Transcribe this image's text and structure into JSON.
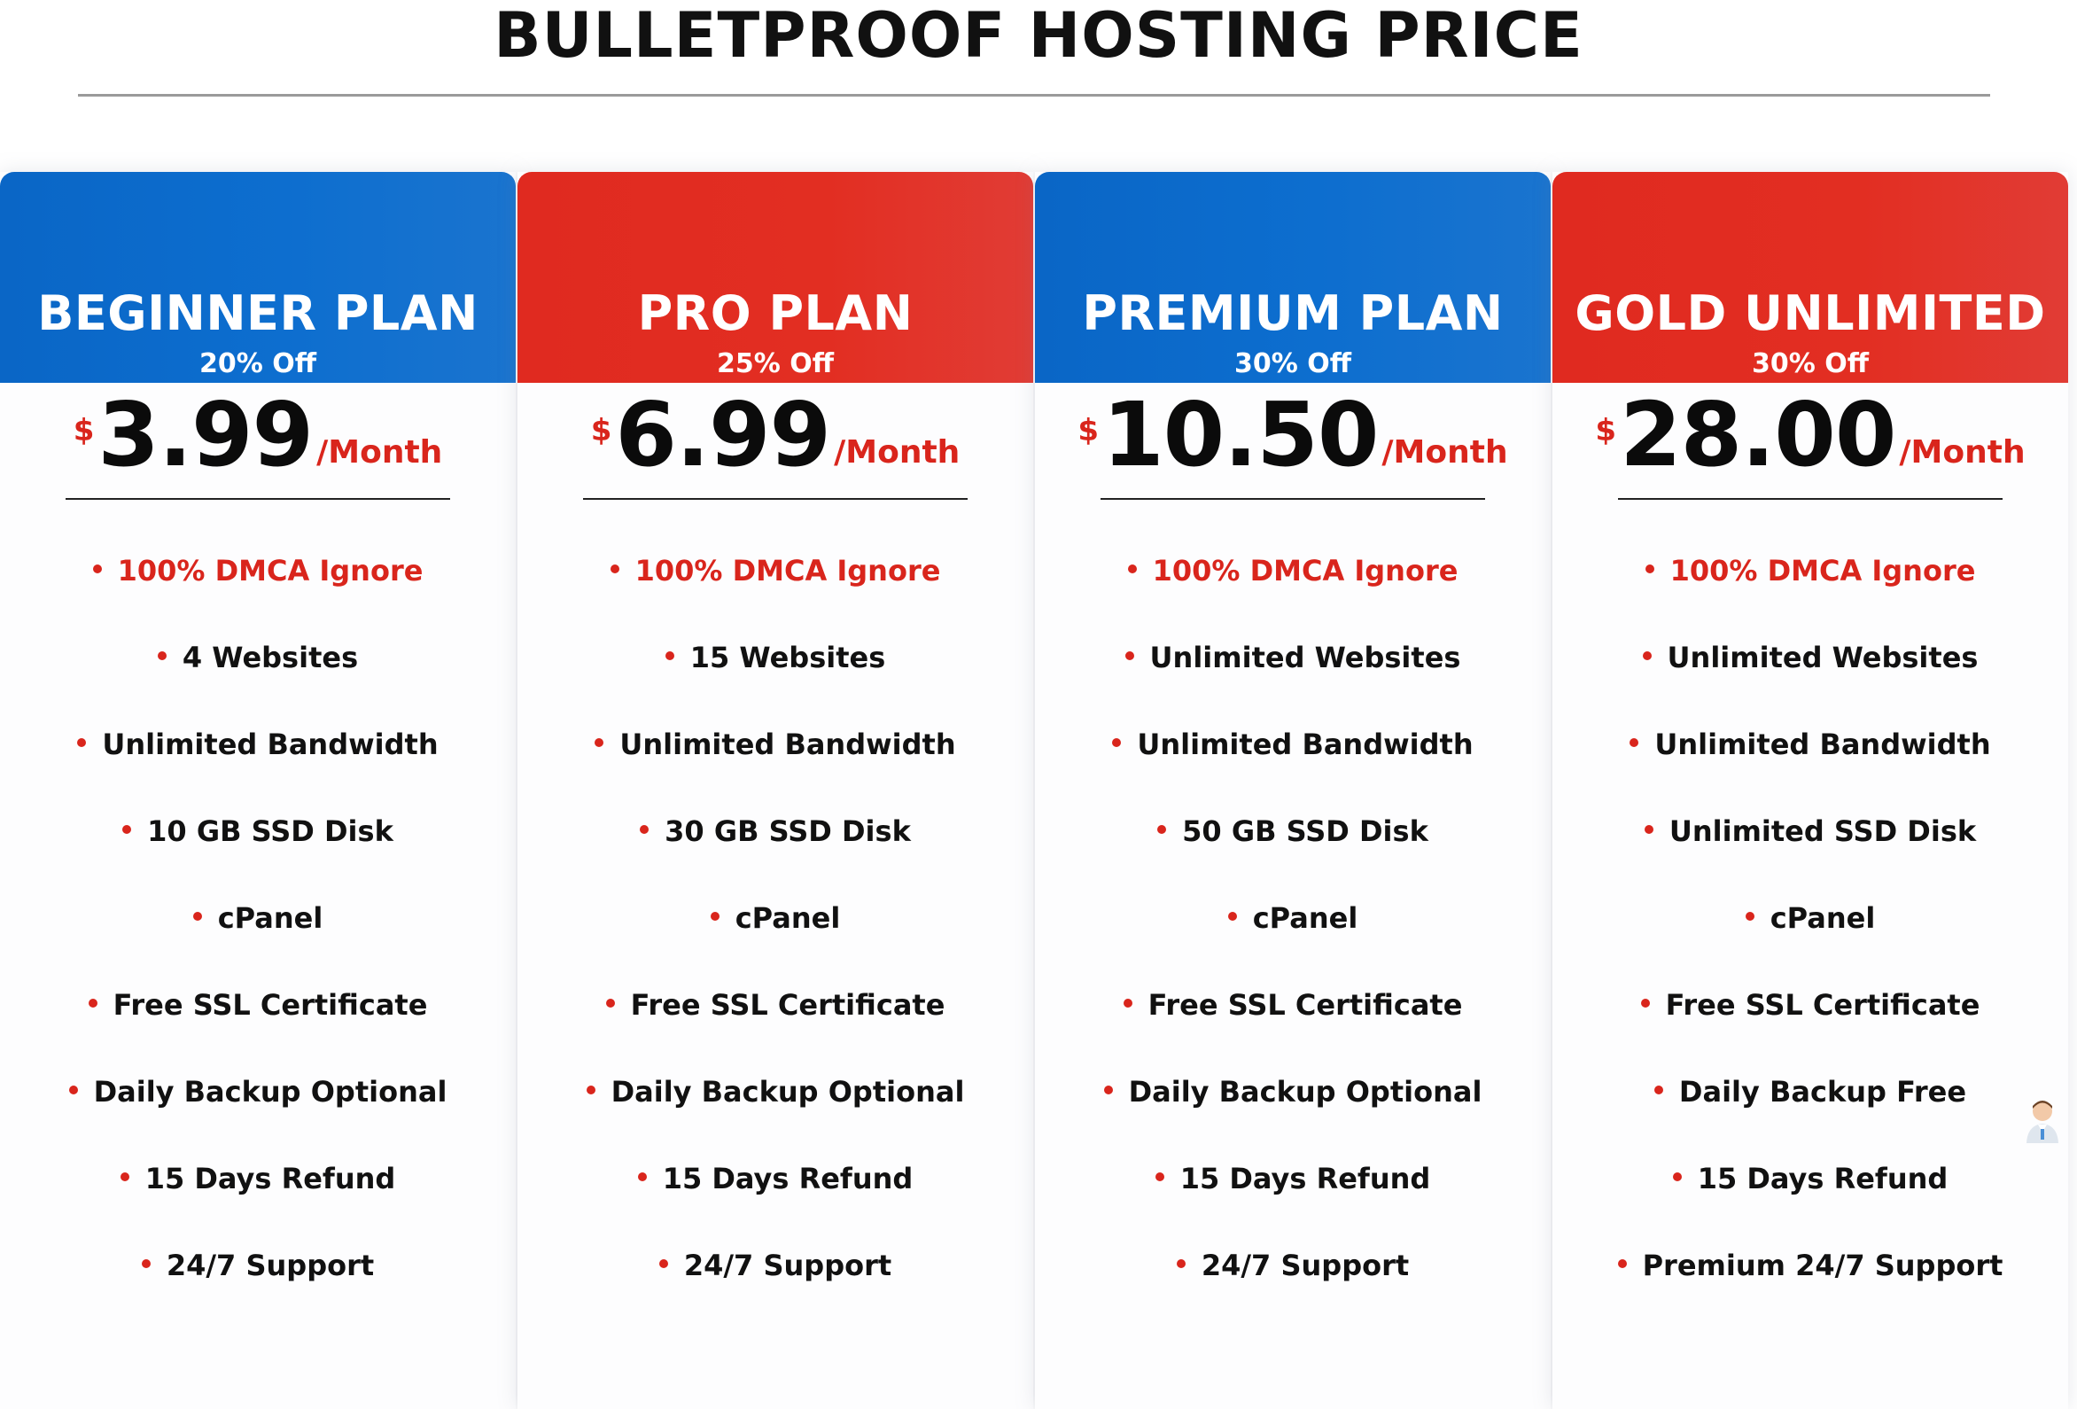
{
  "page": {
    "title": "BULLETPROOF HOSTING PRICE"
  },
  "colors": {
    "blue": "#0d6ecf",
    "red": "#e22e22",
    "accent_red": "#d9251c",
    "text_dark": "#111111"
  },
  "plans": [
    {
      "name": "BEGINNER PLAN",
      "discount": "20% Off",
      "currency": "$",
      "price": "3.99",
      "period": "/Month",
      "header_color": "blue",
      "features": [
        "100% DMCA Ignore",
        "4 Websites",
        "Unlimited Bandwidth",
        "10 GB SSD Disk",
        "cPanel",
        "Free SSL Certificate",
        "Daily Backup Optional",
        "15 Days Refund",
        "24/7 Support"
      ]
    },
    {
      "name": "PRO PLAN",
      "discount": "25% Off",
      "currency": "$",
      "price": "6.99",
      "period": "/Month",
      "header_color": "red",
      "features": [
        "100% DMCA Ignore",
        "15 Websites",
        "Unlimited Bandwidth",
        "30 GB SSD Disk",
        "cPanel",
        "Free SSL Certificate",
        "Daily Backup Optional",
        "15 Days Refund",
        "24/7 Support"
      ]
    },
    {
      "name": "PREMIUM PLAN",
      "discount": "30% Off",
      "currency": "$",
      "price": "10.50",
      "period": "/Month",
      "header_color": "blue",
      "features": [
        "100% DMCA Ignore",
        "Unlimited Websites",
        "Unlimited Bandwidth",
        "50 GB SSD Disk",
        "cPanel",
        "Free SSL Certificate",
        "Daily Backup Optional",
        "15 Days Refund",
        "24/7 Support"
      ]
    },
    {
      "name": "GOLD UNLIMITED",
      "discount": "30% Off",
      "currency": "$",
      "price": "28.00",
      "period": "/Month",
      "header_color": "red",
      "features": [
        "100% DMCA Ignore",
        "Unlimited Websites",
        "Unlimited Bandwidth",
        "Unlimited SSD Disk",
        "cPanel",
        "Free SSL Certificate",
        "Daily Backup Free",
        "15 Days Refund",
        "Premium 24/7 Support"
      ]
    }
  ],
  "support_widget": {
    "icon": "support-agent-icon"
  }
}
